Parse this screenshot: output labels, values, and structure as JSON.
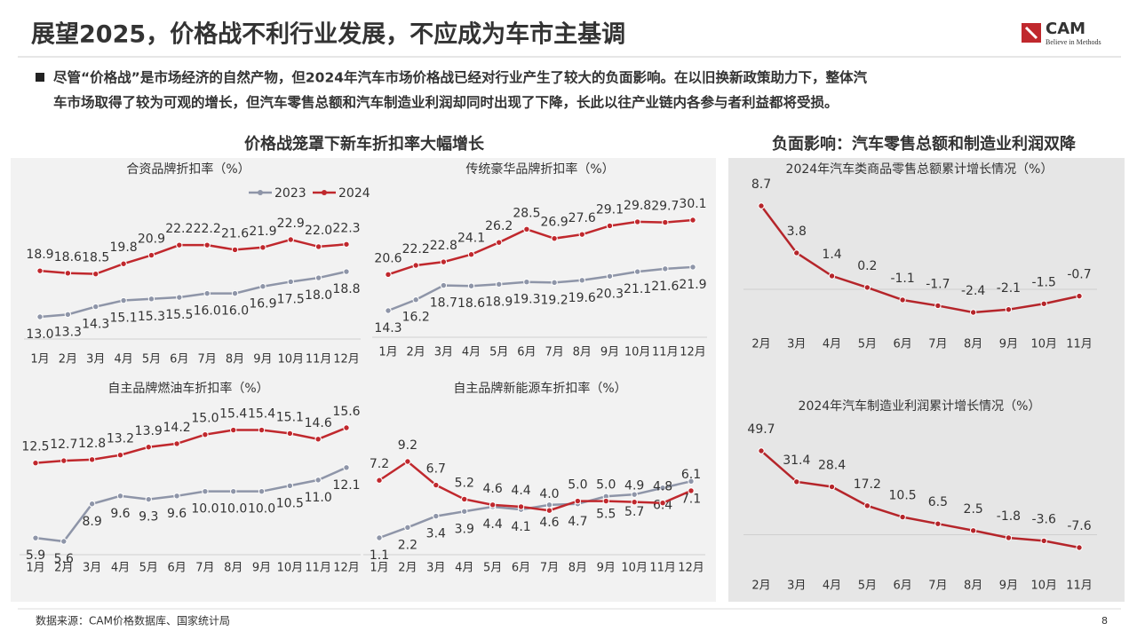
{
  "header": {
    "title": "展望2025，价格战不利行业发展，不应成为车市主基调",
    "logo": "CAM",
    "logo_tagline": "Believe in Methods"
  },
  "bullet": [
    "尽管“价格战”是市场经济的自然产物，但2024年汽车市场价格战已经对行业产生了较大的负面影响。在以旧换新政策助力下，整体汽",
    "车市场取得了较为可观的增长，但汽车零售总额和汽车制造业利润却同时出现了下降，长此以往产业链内各参与者利益都将受损。"
  ],
  "sections": [
    "价格战笼罩下新车折扣率大幅增长",
    "负面影响：汽车零售总额和制造业利润双降"
  ],
  "source": "数据来源：CAM价格数据库、国家统计局",
  "page": "8",
  "chart_data": [
    {
      "type": "line",
      "title": "合资品牌折扣率（%）",
      "legend": "top-right",
      "categories": [
        "1月",
        "2月",
        "3月",
        "4月",
        "5月",
        "6月",
        "7月",
        "8月",
        "9月",
        "10月",
        "11月",
        "12月"
      ],
      "series": [
        {
          "name": "2023",
          "color": "#8e95a8",
          "values": [
            13.0,
            13.3,
            14.3,
            15.1,
            15.3,
            15.5,
            16.0,
            16.0,
            16.9,
            17.5,
            18.0,
            18.8
          ],
          "value_labels": [
            "13.0",
            "13.3",
            "14.3",
            "15.1",
            "15.3",
            "15.5",
            "16.0",
            "16.0",
            "16.9",
            "17.5",
            "18.0",
            "18.8"
          ]
        },
        {
          "name": "2024",
          "color": "#c0282d",
          "values": [
            18.9,
            18.6,
            18.5,
            19.8,
            20.9,
            22.2,
            22.2,
            21.6,
            21.9,
            22.9,
            22.0,
            22.3
          ],
          "value_labels": [
            "18.9",
            "18.6",
            "18.5",
            "19.8",
            "20.9",
            "22.2",
            "22.2",
            "21.6",
            "21.9",
            "22.9",
            "22.0",
            "22.3"
          ]
        }
      ]
    },
    {
      "type": "line",
      "title": "传统豪华品牌折扣率（%）",
      "categories": [
        "1月",
        "2月",
        "3月",
        "4月",
        "5月",
        "6月",
        "7月",
        "8月",
        "9月",
        "10月",
        "11月",
        "12月"
      ],
      "series": [
        {
          "name": "2023",
          "color": "#8e95a8",
          "values": [
            14.3,
            16.2,
            18.7,
            18.6,
            18.9,
            19.3,
            19.2,
            19.6,
            20.3,
            21.1,
            21.6,
            21.9
          ],
          "value_labels": [
            "14.3",
            "16.2",
            "18.7",
            "18.6",
            "18.9",
            "19.3",
            "19.2",
            "19.6",
            "20.3",
            "21.1",
            "21.6",
            "21.9"
          ]
        },
        {
          "name": "2024",
          "color": "#c0282d",
          "values": [
            20.6,
            22.2,
            22.8,
            24.1,
            26.2,
            28.5,
            26.9,
            27.6,
            29.1,
            29.8,
            29.7,
            30.1
          ],
          "value_labels": [
            "20.6",
            "22.2",
            "22.8",
            "24.1",
            "26.2",
            "28.5",
            "26.9",
            "27.6",
            "29.1",
            "29.8",
            "29.7",
            "30.1"
          ]
        }
      ]
    },
    {
      "type": "line",
      "title": "自主品牌燃油车折扣率（%）",
      "categories": [
        "1月",
        "2月",
        "3月",
        "4月",
        "5月",
        "6月",
        "7月",
        "8月",
        "9月",
        "10月",
        "11月",
        "12月"
      ],
      "series": [
        {
          "name": "2023",
          "color": "#8e95a8",
          "values": [
            5.9,
            5.6,
            8.9,
            9.6,
            9.3,
            9.6,
            10.0,
            10.0,
            10.0,
            10.5,
            11.0,
            12.1
          ],
          "value_labels": [
            "5.9",
            "5.6",
            "8.9",
            "9.6",
            "9.3",
            "9.6",
            "10.0",
            "10.0",
            "10.0",
            "10.5",
            "11.0",
            "12.1"
          ]
        },
        {
          "name": "2024",
          "color": "#c0282d",
          "values": [
            12.5,
            12.7,
            12.8,
            13.2,
            13.9,
            14.2,
            15.0,
            15.4,
            15.4,
            15.1,
            14.6,
            15.6
          ],
          "value_labels": [
            "12.5",
            "12.7",
            "12.8",
            "13.2",
            "13.9",
            "14.2",
            "15.0",
            "15.4",
            "15.4",
            "15.1",
            "14.6",
            "15.6"
          ]
        }
      ]
    },
    {
      "type": "line",
      "title": "自主品牌新能源车折扣率（%）",
      "categories": [
        "1月",
        "2月",
        "3月",
        "4月",
        "5月",
        "6月",
        "7月",
        "8月",
        "9月",
        "10月",
        "11月",
        "12月"
      ],
      "series": [
        {
          "name": "2023",
          "color": "#8e95a8",
          "values": [
            1.1,
            2.2,
            3.4,
            3.9,
            4.4,
            4.1,
            4.6,
            4.7,
            5.5,
            5.7,
            6.4,
            7.1
          ],
          "value_labels": [
            "1.1",
            "2.2",
            "3.4",
            "3.9",
            "4.4",
            "4.1",
            "4.6",
            "4.7",
            "5.5",
            "5.7",
            "6.4",
            "7.1"
          ]
        },
        {
          "name": "2024",
          "color": "#c0282d",
          "values": [
            7.2,
            9.2,
            6.7,
            5.2,
            4.6,
            4.4,
            4.0,
            5.0,
            5.0,
            4.9,
            4.8,
            6.1
          ],
          "value_labels": [
            "7.2",
            "9.2",
            "6.7",
            "5.2",
            "4.6",
            "4.4",
            "4.0",
            "5.0",
            "5.0",
            "4.9",
            "4.8",
            "6.1"
          ]
        }
      ]
    },
    {
      "type": "line",
      "title": "2024年汽车类商品零售总额累计增长情况（%）",
      "negative_label_color": "#e00000",
      "categories": [
        "2月",
        "3月",
        "4月",
        "5月",
        "6月",
        "7月",
        "8月",
        "9月",
        "10月",
        "11月"
      ],
      "series": [
        {
          "color": "#b5252a",
          "values": [
            8.7,
            3.8,
            1.4,
            0.2,
            -1.1,
            -1.7,
            -2.4,
            -2.1,
            -1.5,
            -0.7
          ]
        }
      ]
    },
    {
      "type": "line",
      "title": "2024年汽车制造业利润累计增长情况（%）",
      "negative_label_color": "#e00000",
      "categories": [
        "2月",
        "3月",
        "4月",
        "5月",
        "6月",
        "7月",
        "8月",
        "9月",
        "10月",
        "11月"
      ],
      "series": [
        {
          "color": "#b5252a",
          "values": [
            49.7,
            31.4,
            28.4,
            17.2,
            10.5,
            6.5,
            2.5,
            -1.8,
            -3.6,
            -7.6
          ]
        }
      ]
    }
  ]
}
